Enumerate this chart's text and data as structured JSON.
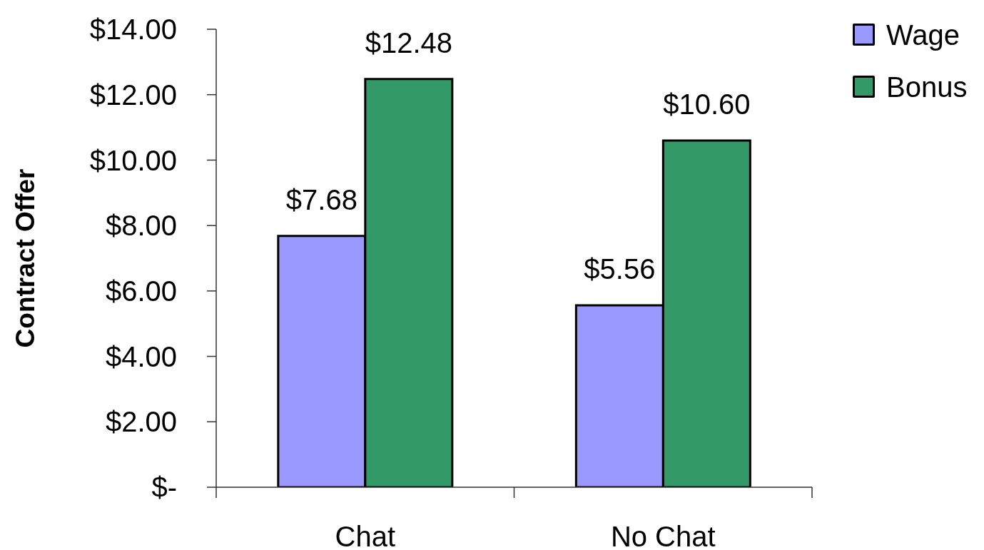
{
  "chart_data": {
    "type": "bar",
    "ylabel": "Contract Offer",
    "categories": [
      "Chat",
      "No Chat"
    ],
    "series": [
      {
        "name": "Wage",
        "color": "#9999ff",
        "values": [
          7.68,
          5.56
        ],
        "value_labels": [
          "$7.68",
          "$5.56"
        ]
      },
      {
        "name": "Bonus",
        "color": "#339966",
        "values": [
          12.48,
          10.6
        ],
        "value_labels": [
          "$12.48",
          "$10.60"
        ]
      }
    ],
    "ylim": [
      0,
      14
    ],
    "yticks": [
      {
        "value": 0,
        "label": "$-"
      },
      {
        "value": 2,
        "label": "$2.00"
      },
      {
        "value": 4,
        "label": "$4.00"
      },
      {
        "value": 6,
        "label": "$6.00"
      },
      {
        "value": 8,
        "label": "$8.00"
      },
      {
        "value": 10,
        "label": "$10.00"
      },
      {
        "value": 12,
        "label": "$12.00"
      },
      {
        "value": 14,
        "label": "$14.00"
      }
    ],
    "legend": "top right"
  }
}
